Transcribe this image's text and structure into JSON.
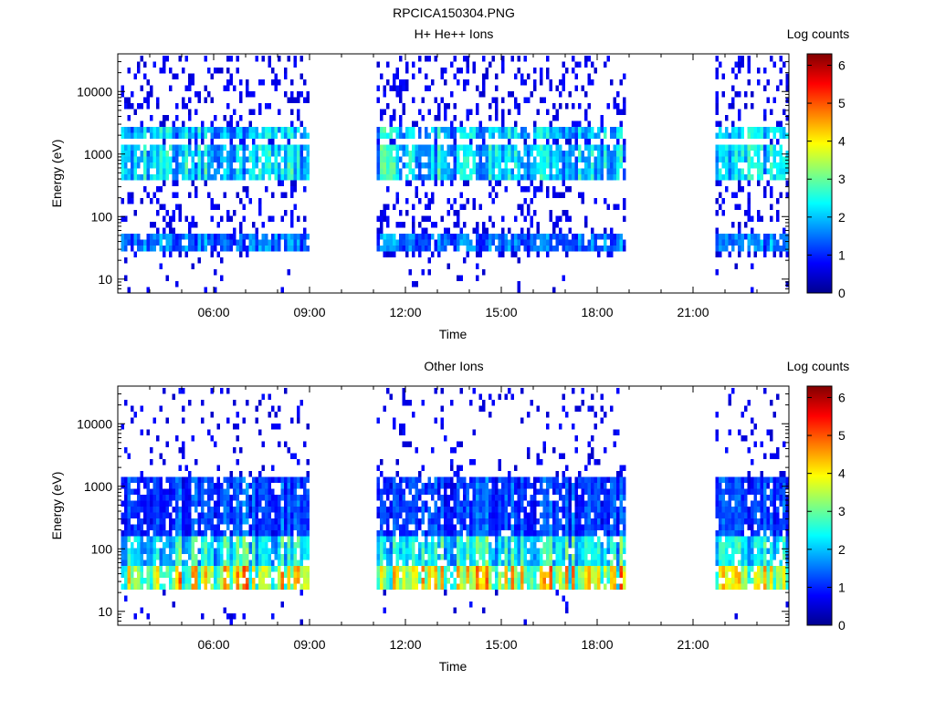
{
  "figure_title": "RPCICA150304.PNG",
  "chart_data": [
    {
      "type": "heatmap",
      "title": "H+ He++ Ions",
      "xlabel": "Time",
      "ylabel": "Energy (eV)",
      "xlim_hours": [
        3.0,
        24.0
      ],
      "x_ticks": [
        "06:00",
        "09:00",
        "12:00",
        "15:00",
        "18:00",
        "21:00"
      ],
      "x_tick_hours": [
        6,
        9,
        12,
        15,
        18,
        21
      ],
      "yscale": "log",
      "ylim": [
        6,
        40000
      ],
      "y_ticks": [
        "10",
        "100",
        "1000",
        "10000"
      ],
      "y_tick_values": [
        10,
        100,
        1000,
        10000
      ],
      "colorbar": {
        "label": "Log counts",
        "range": [
          0,
          6.3
        ],
        "ticks": [
          "0",
          "1",
          "2",
          "3",
          "4",
          "5",
          "6"
        ],
        "tick_values": [
          0,
          1,
          2,
          3,
          4,
          5,
          6
        ]
      },
      "data_intervals_hours": [
        [
          3.1,
          9.0
        ],
        [
          11.1,
          18.9
        ],
        [
          21.7,
          24.0
        ]
      ],
      "bands": [
        {
          "name_energy_range_eV": [
            1800,
            3000
          ],
          "level": 2.2
        },
        {
          "name_energy_range_eV": [
            350,
            1300
          ],
          "level": 2.3
        },
        {
          "name_energy_range_eV": [
            25,
            55
          ],
          "level": 1.6
        }
      ]
    },
    {
      "type": "heatmap",
      "title": "Other Ions",
      "xlabel": "Time",
      "ylabel": "Energy (eV)",
      "xlim_hours": [
        3.0,
        24.0
      ],
      "x_ticks": [
        "06:00",
        "09:00",
        "12:00",
        "15:00",
        "18:00",
        "21:00"
      ],
      "x_tick_hours": [
        6,
        9,
        12,
        15,
        18,
        21
      ],
      "yscale": "log",
      "ylim": [
        6,
        40000
      ],
      "y_ticks": [
        "10",
        "100",
        "1000",
        "10000"
      ],
      "y_tick_values": [
        10,
        100,
        1000,
        10000
      ],
      "colorbar": {
        "label": "Log counts",
        "range": [
          0,
          6.3
        ],
        "ticks": [
          "0",
          "1",
          "2",
          "3",
          "4",
          "5",
          "6"
        ],
        "tick_values": [
          0,
          1,
          2,
          3,
          4,
          5,
          6
        ]
      },
      "data_intervals_hours": [
        [
          3.1,
          9.0
        ],
        [
          11.1,
          18.9
        ],
        [
          21.7,
          24.0
        ]
      ],
      "bands": [
        {
          "name_energy_range_eV": [
            22,
            50
          ],
          "level": 4.0
        },
        {
          "name_energy_range_eV": [
            50,
            150
          ],
          "level": 2.6
        },
        {
          "name_energy_range_eV": [
            150,
            1500
          ],
          "level": 1.3
        }
      ]
    }
  ]
}
